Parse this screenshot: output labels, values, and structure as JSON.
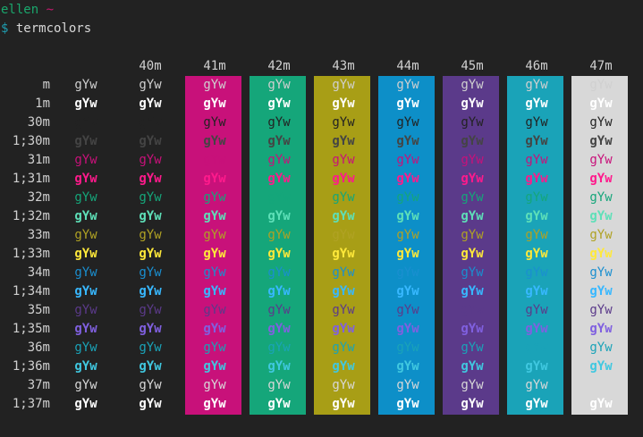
{
  "prompt": {
    "user": "ellen",
    "cwd": "~",
    "symbol": "$",
    "command": "termcolors"
  },
  "sample_text": "gYw",
  "columns": [
    {
      "label": "",
      "bg": null
    },
    {
      "label": "40m",
      "bg": null
    },
    {
      "label": "41m",
      "bg": "#c8117a"
    },
    {
      "label": "42m",
      "bg": "#15a67a"
    },
    {
      "label": "43m",
      "bg": "#a89e16"
    },
    {
      "label": "44m",
      "bg": "#0d8fc8"
    },
    {
      "label": "45m",
      "bg": "#5b3a8a"
    },
    {
      "label": "46m",
      "bg": "#1aa3b8"
    },
    {
      "label": "47m",
      "bg": "#d8d8d8"
    }
  ],
  "rows": [
    {
      "label": "m",
      "fg": "#d0d0d0",
      "bold": false
    },
    {
      "label": "1m",
      "fg": "#ffffff",
      "bold": true
    },
    {
      "label": "30m",
      "fg": "#222222",
      "bold": false
    },
    {
      "label": "1;30m",
      "fg": "#444444",
      "bold": true
    },
    {
      "label": "31m",
      "fg": "#c8117a",
      "bold": false
    },
    {
      "label": "1;31m",
      "fg": "#ff1a8c",
      "bold": true
    },
    {
      "label": "32m",
      "fg": "#15a67a",
      "bold": false
    },
    {
      "label": "1;32m",
      "fg": "#5ee0b8",
      "bold": true
    },
    {
      "label": "33m",
      "fg": "#b0a224",
      "bold": false
    },
    {
      "label": "1;33m",
      "fg": "#ffe93a",
      "bold": true
    },
    {
      "label": "34m",
      "fg": "#1a8fd0",
      "bold": false
    },
    {
      "label": "1;34m",
      "fg": "#38b8ff",
      "bold": true
    },
    {
      "label": "35m",
      "fg": "#5b3a8a",
      "bold": false
    },
    {
      "label": "1;35m",
      "fg": "#8060e0",
      "bold": true
    },
    {
      "label": "36m",
      "fg": "#1aa3b8",
      "bold": false
    },
    {
      "label": "1;36m",
      "fg": "#40c8e0",
      "bold": true
    },
    {
      "label": "37m",
      "fg": "#d8d8d8",
      "bold": false
    },
    {
      "label": "1;37m",
      "fg": "#ffffff",
      "bold": true
    }
  ]
}
